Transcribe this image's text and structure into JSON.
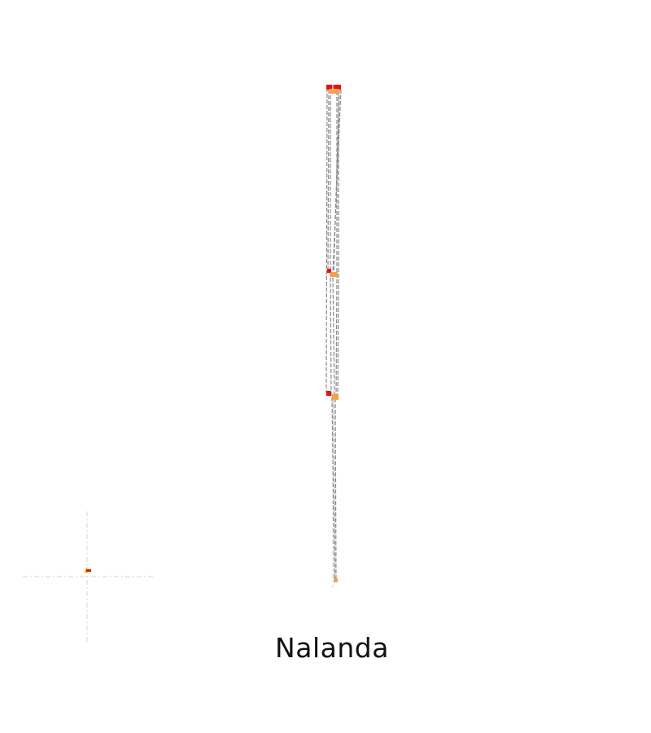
{
  "caption": "Nalanda",
  "colors": {
    "marker_red": "#e8120c",
    "marker_orange": "#f5a04a",
    "marker_yellow": "#f2c200",
    "route": "#8a8a8a",
    "axis": "#d6d6d6"
  }
}
